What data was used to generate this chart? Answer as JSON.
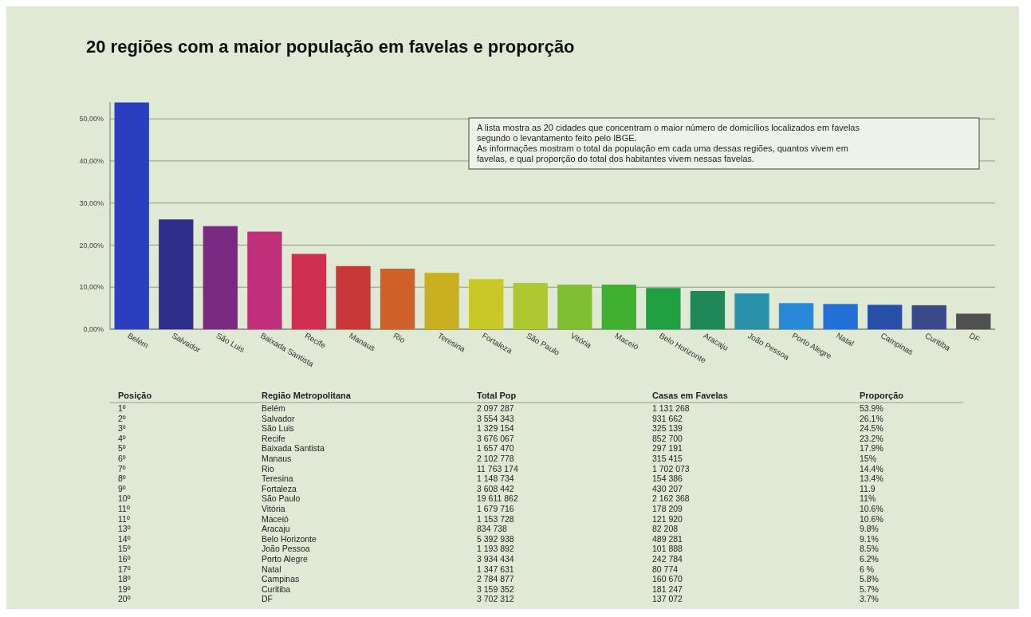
{
  "chart_data": [
    {
      "type": "bar",
      "title": "20 regiões com a maior população em favelas e proporção",
      "annotations": [
        "A lista mostra as 20 cidades que concentram o maior número de domicílios localizados em favelas segundo o levantamento feito pelo IBGE.\nAs informações mostram o total da população em cada uma dessas regiões, quantos vivem em favelas, e qual proporção do total dos habitantes vivem nessas favelas."
      ],
      "categories": [
        "Belém",
        "Salvador",
        "São Luis",
        "Baixada Santista",
        "Recife",
        "Manaus",
        "Rio",
        "Teresina",
        "Fortaleza",
        "São Paulo",
        "Vitória",
        "Maceió",
        "Belo Horizonte",
        "Aracaju",
        "João Pessoa",
        "Porto Alegre",
        "Natal",
        "Campinas",
        "Curitiba",
        "DF"
      ],
      "values": [
        53.9,
        26.1,
        24.5,
        23.2,
        17.9,
        15,
        14.4,
        13.4,
        11.9,
        11,
        10.6,
        10.6,
        9.8,
        9.1,
        8.5,
        6.2,
        6,
        5.8,
        5.7,
        3.7
      ],
      "colors": [
        "#2a3fc0",
        "#2e2f8a",
        "#7a2a80",
        "#c0307a",
        "#d03050",
        "#c83838",
        "#d0602a",
        "#c8b020",
        "#c8c828",
        "#b0c830",
        "#80c030",
        "#40b030",
        "#20a040",
        "#208858",
        "#2890a8",
        "#2888d8",
        "#2070d8",
        "#2850a8",
        "#384888",
        "#505050"
      ],
      "ylim": [
        0,
        54
      ],
      "yticks": [
        {
          "value": 0,
          "label": "0,00%"
        },
        {
          "value": 10,
          "label": "10,00%"
        },
        {
          "value": 20,
          "label": "20,00%"
        },
        {
          "value": 30,
          "label": "30,00%"
        },
        {
          "value": 40,
          "label": "40,00%"
        },
        {
          "value": 50,
          "label": "50,00%"
        }
      ],
      "grid": "y"
    },
    {
      "type": "other",
      "categories": [
        "Posição",
        "Região Metropolitana",
        "Total Pop",
        "Casas em Favelas",
        "Proporção"
      ],
      "cell_labels": [
        [
          "1º",
          "Belém",
          "2 097 287",
          "1 131 268",
          "53.9%"
        ],
        [
          "2º",
          "Salvador",
          "3 554 343",
          "931 662",
          "26.1%"
        ],
        [
          "3º",
          "São Luis",
          "1 329 154",
          "325 139",
          "24.5%"
        ],
        [
          "4º",
          "Recife",
          "3 676 067",
          "852 700",
          "23.2%"
        ],
        [
          "5º",
          "Baixada Santista",
          "1 657 470",
          "297 191",
          "17.9%"
        ],
        [
          "6º",
          "Manaus",
          "2 102 778",
          "315 415",
          "15%"
        ],
        [
          "7º",
          "Rio",
          "11 763 174",
          "1 702 073",
          "14.4%"
        ],
        [
          "8º",
          "Teresina",
          "1 148 734",
          "154 386",
          "13.4%"
        ],
        [
          "9º",
          "Fortaleza",
          "3 608 442",
          "430 207",
          "11.9"
        ],
        [
          "10º",
          "São Paulo",
          "19 611 862",
          "2 162 368",
          "11%"
        ],
        [
          "11º",
          "Vitória",
          "1 679 716",
          "178 209",
          "10.6%"
        ],
        [
          "11º",
          "Maceió",
          "1 153 728",
          "121 920",
          "10.6%"
        ],
        [
          "13º",
          "Aracaju",
          "834 738",
          "82 208",
          "9.8%"
        ],
        [
          "14º",
          "Belo Horizonte",
          "5 392 938",
          "489 281",
          "9.1%"
        ],
        [
          "15º",
          "João Pessoa",
          "1 193 892",
          "101 888",
          "8.5%"
        ],
        [
          "16º",
          "Porto Alegre",
          "3 934 434",
          "242 784",
          "6.2%"
        ],
        [
          "17º",
          "Natal",
          "1 347 631",
          "80 774",
          "6 %"
        ],
        [
          "18º",
          "Campinas",
          "2 784 877",
          "160 670",
          "5.8%"
        ],
        [
          "19º",
          "Curitiba",
          "3 159 352",
          "181 247",
          "5.7%"
        ],
        [
          "20º",
          "DF",
          "3 702 312",
          "137 072",
          "3.7%"
        ]
      ]
    }
  ]
}
